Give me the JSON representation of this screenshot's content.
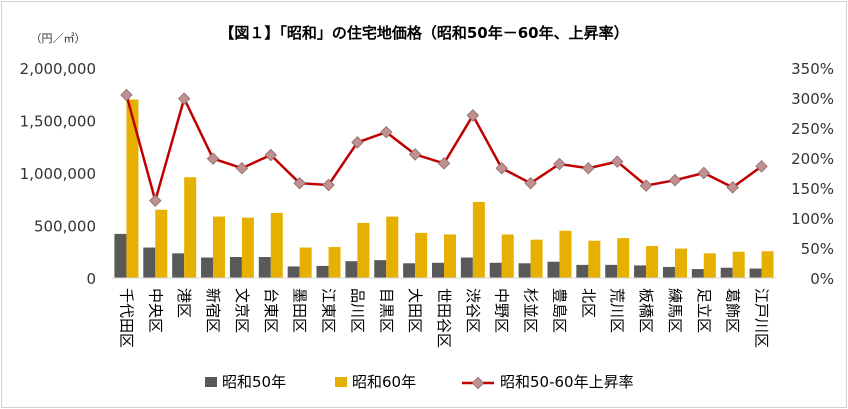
{
  "chart_data": {
    "type": "bar",
    "title": "【図１】「昭和」の住宅地価格（昭和50年－60年、上昇率）",
    "y_unit_label": "（円／㎡）",
    "categories": [
      "千代田区",
      "中央区",
      "港区",
      "新宿区",
      "文京区",
      "台東区",
      "墨田区",
      "江東区",
      "品川区",
      "目黒区",
      "大田区",
      "世田谷区",
      "渋谷区",
      "中野区",
      "杉並区",
      "豊島区",
      "北区",
      "荒川区",
      "板橋区",
      "練馬区",
      "足立区",
      "葛飾区",
      "江戸川区"
    ],
    "ylim": [
      0,
      2000000
    ],
    "y_ticks": [
      "0",
      "500,000",
      "1,000,000",
      "1,500,000",
      "2,000,000"
    ],
    "y_ticks_values": [
      0,
      500000,
      1000000,
      1500000,
      2000000
    ],
    "y2lim": [
      0,
      350
    ],
    "y2_ticks": [
      "0%",
      "50%",
      "100%",
      "150%",
      "200%",
      "250%",
      "300%",
      "350%"
    ],
    "y2_ticks_values": [
      0,
      50,
      100,
      150,
      200,
      250,
      300,
      350
    ],
    "grid": false,
    "legend_position": "bottom",
    "series": [
      {
        "name": "昭和50年",
        "type": "bar",
        "color": "#595959",
        "axis": "left",
        "values": [
          420000,
          290000,
          235000,
          195000,
          200000,
          200000,
          110000,
          115000,
          160000,
          170000,
          140000,
          145000,
          195000,
          145000,
          140000,
          155000,
          125000,
          125000,
          120000,
          105000,
          85000,
          98000,
          90000
        ]
      },
      {
        "name": "昭和60年",
        "type": "bar",
        "color": "#e6b000",
        "axis": "left",
        "values": [
          1700000,
          650000,
          960000,
          585000,
          575000,
          620000,
          290000,
          295000,
          525000,
          585000,
          430000,
          415000,
          725000,
          415000,
          365000,
          450000,
          355000,
          380000,
          305000,
          280000,
          235000,
          250000,
          255000
        ]
      },
      {
        "name": "昭和50-60年上昇率",
        "type": "line",
        "color": "#c00000",
        "marker_color": "#c09090",
        "axis": "right",
        "values": [
          305,
          129,
          299,
          199,
          183,
          205,
          158,
          155,
          226,
          243,
          206,
          191,
          271,
          183,
          158,
          190,
          183,
          194,
          154,
          163,
          175,
          151,
          186
        ]
      }
    ]
  }
}
